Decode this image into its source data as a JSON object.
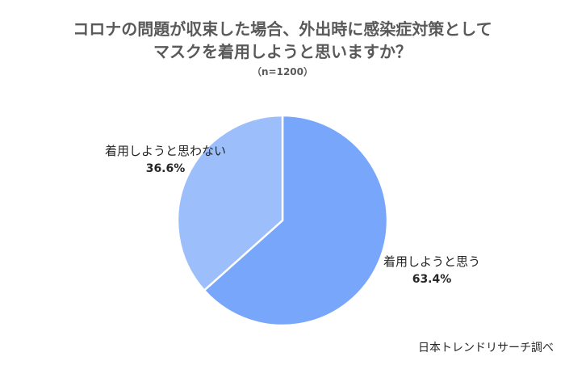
{
  "chart_data": {
    "type": "pie",
    "title_lines": [
      "コロナの問題が収束した場合、外出時に感染症対策として",
      "マスクを着用しようと思いますか？"
    ],
    "subtitle": "（n=1200）",
    "slices": [
      {
        "label": "着用しようと思う",
        "value": 63.4,
        "value_label": "63.4%",
        "color": "#78a6fb"
      },
      {
        "label": "着用しようと思わない",
        "value": 36.6,
        "value_label": "36.6%",
        "color": "#9cbffb"
      }
    ]
  },
  "source": "日本トレンドリサーチ調べ"
}
